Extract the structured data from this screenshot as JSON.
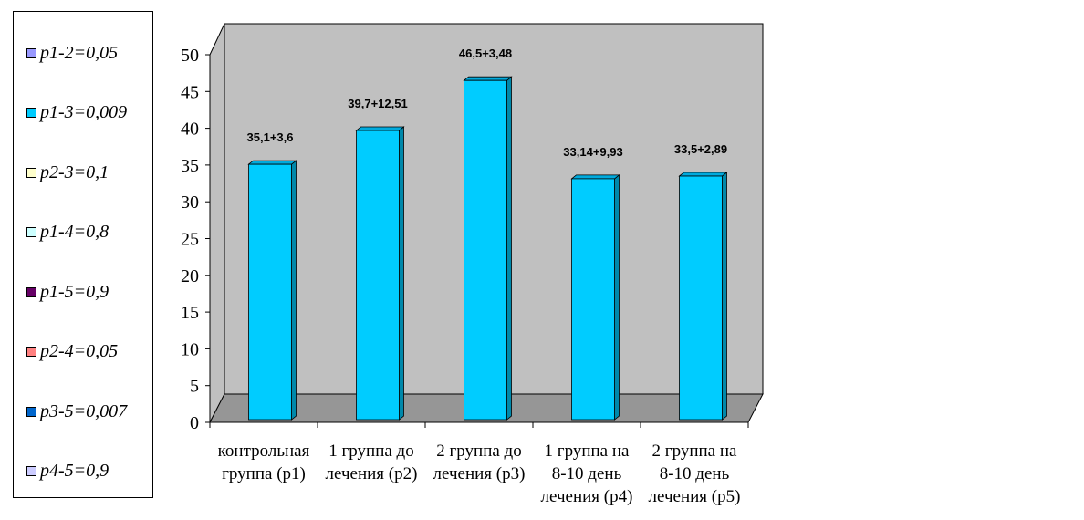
{
  "legend": {
    "items": [
      {
        "label": "p1-2=0,05",
        "color": "#9999ff"
      },
      {
        "label": "p1-3=0,009",
        "color": "#00ccff"
      },
      {
        "label": "p2-3=0,1",
        "color": "#ffffcc"
      },
      {
        "label": "p1-4=0,8",
        "color": "#ccffff"
      },
      {
        "label": "p1-5=0,9",
        "color": "#660066"
      },
      {
        "label": "p2-4=0,05",
        "color": "#ff8080"
      },
      {
        "label": "p3-5=0,007",
        "color": "#0066cc"
      },
      {
        "label": "p4-5=0,9",
        "color": "#ccccff"
      }
    ]
  },
  "colors": {
    "bar": "#00ccff",
    "bar_side": "#0088aa",
    "bar_top": "#00aadd",
    "wall": "#c0c0c0",
    "floor": "#969696"
  },
  "chart_data": {
    "type": "bar",
    "categories": [
      [
        "контрольная",
        "группа (p1)"
      ],
      [
        "1 группа до",
        "лечения (p2)"
      ],
      [
        "2 группа до",
        "лечения (p3)"
      ],
      [
        "1 группа на",
        "8-10 день",
        "лечения (p4)"
      ],
      [
        "2 группа на",
        "8-10 день",
        "лечения (p5)"
      ]
    ],
    "values": [
      35.1,
      39.7,
      46.5,
      33.14,
      33.5
    ],
    "data_labels": [
      "35,1+3,6",
      "39,7+12,51",
      "46,5+3,48",
      "33,14+9,93",
      "33,5+2,89"
    ],
    "ylim": [
      0,
      50
    ],
    "yticks": [
      "0",
      "5",
      "10",
      "15",
      "20",
      "25",
      "30",
      "35",
      "40",
      "45",
      "50"
    ],
    "grid": false,
    "legend_position": "left"
  }
}
